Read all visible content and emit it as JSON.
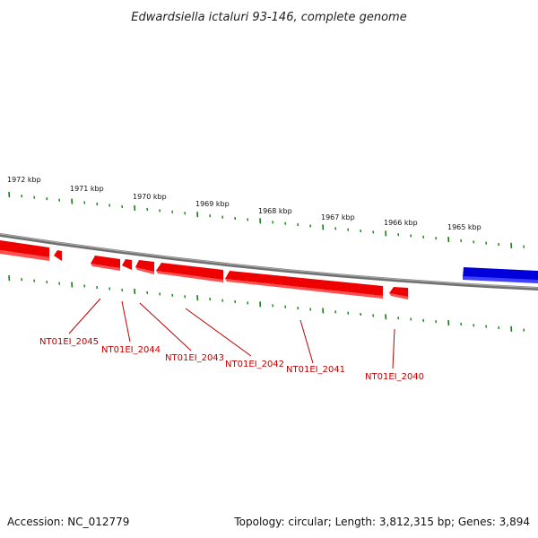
{
  "title": "Edwardsiella ictaluri 93-146, complete genome",
  "footer": {
    "accession": "Accession: NC_012779",
    "summary": "Topology: circular; Length: 3,812,315 bp; Genes: 3,894"
  },
  "colors": {
    "backbone": "#808080",
    "forward_gene": "#0000dd",
    "reverse_gene": "#ee0000",
    "tick": "#1a7a1a",
    "label": "#c00000"
  },
  "kbp_labels": [
    "1972 kbp",
    "1971 kbp",
    "1970 kbp",
    "1969 kbp",
    "1968 kbp",
    "1967 kbp",
    "1966 kbp",
    "1965 kbp"
  ],
  "gene_labels": [
    "NT01EI_2045",
    "NT01EI_2044",
    "NT01EI_2043",
    "NT01EI_2042",
    "NT01EI_2041",
    "NT01EI_2040"
  ]
}
